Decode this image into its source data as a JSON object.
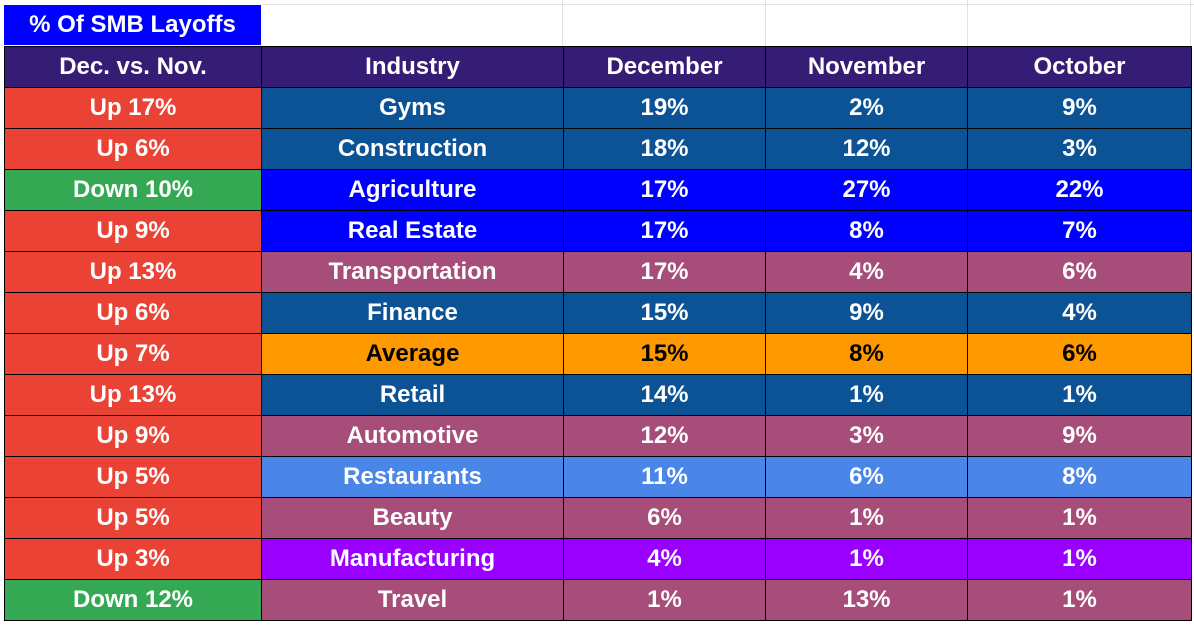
{
  "title": "% Of SMB Layoffs",
  "colors": {
    "title_bg": "#0000ff",
    "header_bg": "#351c75",
    "up": "#ea4335",
    "down": "#34a853",
    "dark_blue": "#0b5394",
    "bright_blue": "#0000ff",
    "mauve": "#a64d79",
    "orange": "#ff9900",
    "light_blue": "#4a86e8",
    "purple": "#9900ff"
  },
  "chart_data": {
    "type": "table",
    "title": "% Of SMB Layoffs",
    "columns": [
      "Dec. vs. Nov.",
      "Industry",
      "December",
      "November",
      "October"
    ],
    "rows": [
      {
        "change": "Up 17%",
        "change_dir": "up",
        "industry": "Gyms",
        "december": "19%",
        "november": "2%",
        "october": "9%",
        "row_color": "dark_blue"
      },
      {
        "change": "Up 6%",
        "change_dir": "up",
        "industry": "Construction",
        "december": "18%",
        "november": "12%",
        "october": "3%",
        "row_color": "dark_blue"
      },
      {
        "change": "Down 10%",
        "change_dir": "down",
        "industry": "Agriculture",
        "december": "17%",
        "november": "27%",
        "october": "22%",
        "row_color": "bright_blue"
      },
      {
        "change": "Up 9%",
        "change_dir": "up",
        "industry": "Real Estate",
        "december": "17%",
        "november": "8%",
        "october": "7%",
        "row_color": "bright_blue"
      },
      {
        "change": "Up 13%",
        "change_dir": "up",
        "industry": "Transportation",
        "december": "17%",
        "november": "4%",
        "october": "6%",
        "row_color": "mauve"
      },
      {
        "change": "Up 6%",
        "change_dir": "up",
        "industry": "Finance",
        "december": "15%",
        "november": "9%",
        "october": "4%",
        "row_color": "dark_blue"
      },
      {
        "change": "Up 7%",
        "change_dir": "up",
        "industry": "Average",
        "december": "15%",
        "november": "8%",
        "october": "6%",
        "row_color": "orange",
        "dark_text": true
      },
      {
        "change": "Up 13%",
        "change_dir": "up",
        "industry": "Retail",
        "december": "14%",
        "november": "1%",
        "october": "1%",
        "row_color": "dark_blue"
      },
      {
        "change": "Up 9%",
        "change_dir": "up",
        "industry": "Automotive",
        "december": "12%",
        "november": "3%",
        "october": "9%",
        "row_color": "mauve"
      },
      {
        "change": "Up 5%",
        "change_dir": "up",
        "industry": "Restaurants",
        "december": "11%",
        "november": "6%",
        "october": "8%",
        "row_color": "light_blue"
      },
      {
        "change": "Up 5%",
        "change_dir": "up",
        "industry": "Beauty",
        "december": "6%",
        "november": "1%",
        "october": "1%",
        "row_color": "mauve"
      },
      {
        "change": "Up 3%",
        "change_dir": "up",
        "industry": "Manufacturing",
        "december": "4%",
        "november": "1%",
        "october": "1%",
        "row_color": "purple"
      },
      {
        "change": "Down 12%",
        "change_dir": "down",
        "industry": "Travel",
        "december": "1%",
        "november": "13%",
        "october": "1%",
        "row_color": "mauve"
      }
    ]
  }
}
